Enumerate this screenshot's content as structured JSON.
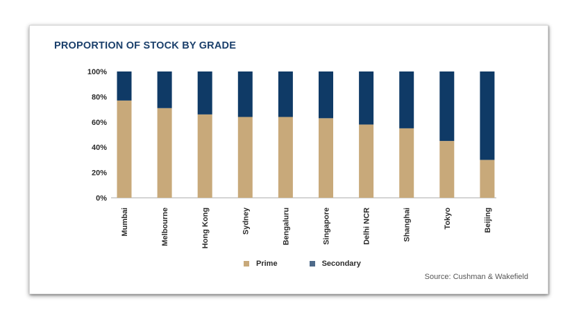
{
  "chart_data": {
    "type": "bar",
    "stacked": true,
    "title": "PROPORTION OF STOCK BY GRADE",
    "categories": [
      "Mumbai",
      "Melbourne",
      "Hong Kong",
      "Sydney",
      "Bengaluru",
      "Singapore",
      "Delhi NCR",
      "Shanghai",
      "Tokyo",
      "Beijing"
    ],
    "series": [
      {
        "name": "Prime",
        "color": "#c8a97a",
        "values": [
          77,
          71,
          66,
          64,
          64,
          63,
          58,
          55,
          45,
          30
        ]
      },
      {
        "name": "Secondary",
        "color": "#0f3a66",
        "values": [
          23,
          29,
          34,
          36,
          36,
          37,
          42,
          45,
          55,
          70
        ]
      }
    ],
    "ylim": [
      0,
      100
    ],
    "yticks": [
      "0%",
      "20%",
      "40%",
      "60%",
      "80%",
      "100%"
    ],
    "xlabel": "",
    "ylabel": "",
    "grid": false,
    "legend_position": "bottom"
  },
  "source_label": "Source: Cushman & Wakefield"
}
